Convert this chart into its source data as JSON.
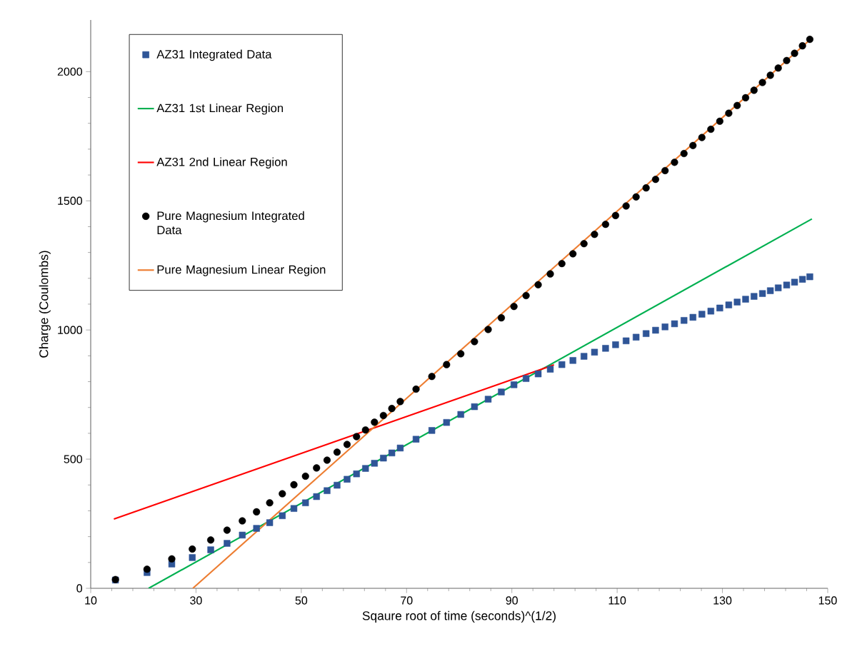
{
  "chart_data": {
    "type": "scatter",
    "xlabel": "Sqaure root of time (seconds)^(1/2)",
    "ylabel": "Charge  (Coulombs)",
    "xlim": [
      10,
      150
    ],
    "ylim": [
      0,
      2200
    ],
    "xticks": [
      10,
      30,
      50,
      70,
      90,
      110,
      130,
      150
    ],
    "yticks": [
      0,
      500,
      1000,
      1500,
      2000
    ],
    "grid": false,
    "legend": "top left",
    "series": [
      {
        "name": "AZ31 Integrated Data",
        "marker": "square",
        "color": "#2f5597",
        "x": [
          14.7,
          20.7,
          25.4,
          29.3,
          32.8,
          35.9,
          38.8,
          41.5,
          44.0,
          46.4,
          48.6,
          50.8,
          52.9,
          54.9,
          56.8,
          58.7,
          60.5,
          62.2,
          63.9,
          65.6,
          67.2,
          68.8,
          71.8,
          74.8,
          77.6,
          80.3,
          82.9,
          85.5,
          88.0,
          90.4,
          92.7,
          95.0,
          97.3,
          99.5,
          101.6,
          103.7,
          105.7,
          107.8,
          109.7,
          111.7,
          113.6,
          115.5,
          117.3,
          119.1,
          120.9,
          122.7,
          124.4,
          126.1,
          127.8,
          129.5,
          131.2,
          132.8,
          134.4,
          136.0,
          137.6,
          139.1,
          140.6,
          142.2,
          143.7,
          145.2,
          146.6
        ],
        "values": [
          32,
          61,
          94,
          119,
          149,
          174,
          206,
          232,
          254,
          281,
          309,
          331,
          355,
          378,
          399,
          422,
          443,
          464,
          484,
          504,
          524,
          543,
          577,
          611,
          642,
          673,
          703,
          732,
          760,
          788,
          812,
          830,
          848,
          866,
          882,
          898,
          914,
          929,
          943,
          958,
          972,
          986,
          999,
          1012,
          1024,
          1037,
          1049,
          1061,
          1073,
          1085,
          1097,
          1108,
          1119,
          1130,
          1141,
          1152,
          1163,
          1174,
          1185,
          1196,
          1206
        ]
      },
      {
        "name": "AZ31 1st Linear Region",
        "type": "line",
        "marker": "none",
        "line_style": "solid",
        "color": "#00b050",
        "x": [
          21.0,
          147
        ],
        "values": [
          0,
          1430
        ]
      },
      {
        "name": "AZ31 2nd Linear Region",
        "type": "line",
        "marker": "none",
        "line_style": "solid",
        "color": "#ff0000",
        "x": [
          14.4,
          98
        ],
        "values": [
          268,
          865
        ]
      },
      {
        "name": "Pure Magnesium Integrated Data",
        "marker": "circle",
        "color": "#000000",
        "x": [
          14.7,
          20.7,
          25.4,
          29.3,
          32.8,
          35.9,
          38.8,
          41.5,
          44.0,
          46.4,
          48.6,
          50.8,
          52.9,
          54.9,
          56.8,
          58.7,
          60.5,
          62.2,
          63.9,
          65.6,
          67.2,
          68.8,
          71.8,
          74.8,
          77.6,
          80.3,
          82.9,
          85.5,
          88.0,
          90.4,
          92.7,
          95.0,
          97.3,
          99.5,
          101.6,
          103.7,
          105.7,
          107.8,
          109.7,
          111.7,
          113.6,
          115.5,
          117.3,
          119.1,
          120.9,
          122.7,
          124.4,
          126.1,
          127.8,
          129.5,
          131.2,
          132.8,
          134.4,
          136.0,
          137.6,
          139.1,
          140.6,
          142.2,
          143.7,
          145.2,
          146.6
        ],
        "values": [
          34,
          74,
          114,
          152,
          187,
          225,
          261,
          296,
          331,
          366,
          401,
          434,
          466,
          496,
          527,
          557,
          587,
          613,
          643,
          669,
          696,
          723,
          771,
          820,
          866,
          908,
          955,
          1002,
          1047,
          1091,
          1133,
          1175,
          1217,
          1257,
          1295,
          1334,
          1370,
          1409,
          1443,
          1480,
          1515,
          1550,
          1583,
          1617,
          1649,
          1683,
          1714,
          1745,
          1777,
          1808,
          1839,
          1869,
          1899,
          1928,
          1958,
          1986,
          2014,
          2043,
          2071,
          2100,
          2125
        ]
      },
      {
        "name": "Pure Magnesium Linear Region",
        "type": "line",
        "marker": "none",
        "line_style": "solid",
        "color": "#ed7d31",
        "x": [
          29.4,
          147
        ],
        "values": [
          0,
          2130
        ]
      }
    ]
  }
}
